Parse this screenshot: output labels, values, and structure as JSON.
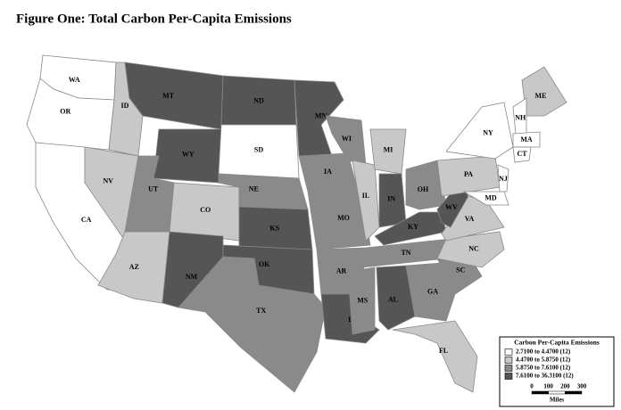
{
  "title": "Figure One: Total Carbon Per-Capita Emissions",
  "legend": {
    "title": "Carbon Per-Capita Emissions",
    "classes": [
      {
        "label": "2.7100 to 4.4700 (12)",
        "color": "#ffffff"
      },
      {
        "label": "4.4700 to 5.8750 (12)",
        "color": "#c8c8c8"
      },
      {
        "label": "5.8750 to 7.6100 (12)",
        "color": "#8a8a8a"
      },
      {
        "label": "7.6100 to 36.3100 (12)",
        "color": "#555555"
      }
    ],
    "scale": {
      "ticks": [
        0,
        100,
        200,
        300
      ],
      "unit": "Miles"
    }
  },
  "states": [
    {
      "label": "WA",
      "color": "#ffffff"
    },
    {
      "label": "OR",
      "color": "#ffffff"
    },
    {
      "label": "CA",
      "color": "#ffffff"
    },
    {
      "label": "ID",
      "color": "#c8c8c8"
    },
    {
      "label": "NV",
      "color": "#c8c8c8"
    },
    {
      "label": "MT",
      "color": "#555555"
    },
    {
      "label": "WY",
      "color": "#555555"
    },
    {
      "label": "UT",
      "color": "#8a8a8a"
    },
    {
      "label": "AZ",
      "color": "#c8c8c8"
    },
    {
      "label": "CO",
      "color": "#c8c8c8"
    },
    {
      "label": "NM",
      "color": "#555555"
    },
    {
      "label": "ND",
      "color": "#555555"
    },
    {
      "label": "SD",
      "color": "#ffffff"
    },
    {
      "label": "NE",
      "color": "#8a8a8a"
    },
    {
      "label": "KS",
      "color": "#555555"
    },
    {
      "label": "OK",
      "color": "#555555"
    },
    {
      "label": "TX",
      "color": "#8a8a8a"
    },
    {
      "label": "MN",
      "color": "#555555"
    },
    {
      "label": "IA",
      "color": "#8a8a8a"
    },
    {
      "label": "MO",
      "color": "#8a8a8a"
    },
    {
      "label": "AR",
      "color": "#8a8a8a"
    },
    {
      "label": "LA",
      "color": "#555555"
    },
    {
      "label": "WI",
      "color": "#8a8a8a"
    },
    {
      "label": "IL",
      "color": "#c8c8c8"
    },
    {
      "label": "MI",
      "color": "#c8c8c8"
    },
    {
      "label": "IN",
      "color": "#555555"
    },
    {
      "label": "OH",
      "color": "#8a8a8a"
    },
    {
      "label": "KY",
      "color": "#555555"
    },
    {
      "label": "TN",
      "color": "#8a8a8a"
    },
    {
      "label": "MS",
      "color": "#8a8a8a"
    },
    {
      "label": "AL",
      "color": "#555555"
    },
    {
      "label": "GA",
      "color": "#8a8a8a"
    },
    {
      "label": "FL",
      "color": "#c8c8c8"
    },
    {
      "label": "SC",
      "color": "#8a8a8a"
    },
    {
      "label": "NC",
      "color": "#c8c8c8"
    },
    {
      "label": "VA",
      "color": "#c8c8c8"
    },
    {
      "label": "WV",
      "color": "#555555"
    },
    {
      "label": "PA",
      "color": "#c8c8c8"
    },
    {
      "label": "NY",
      "color": "#ffffff"
    },
    {
      "label": "NJ",
      "color": "#ffffff"
    },
    {
      "label": "MD",
      "color": "#ffffff"
    },
    {
      "label": "ME",
      "color": "#c8c8c8"
    },
    {
      "label": "NH",
      "color": "#ffffff"
    },
    {
      "label": "MA",
      "color": "#ffffff"
    },
    {
      "label": "CT",
      "color": "#ffffff"
    }
  ]
}
